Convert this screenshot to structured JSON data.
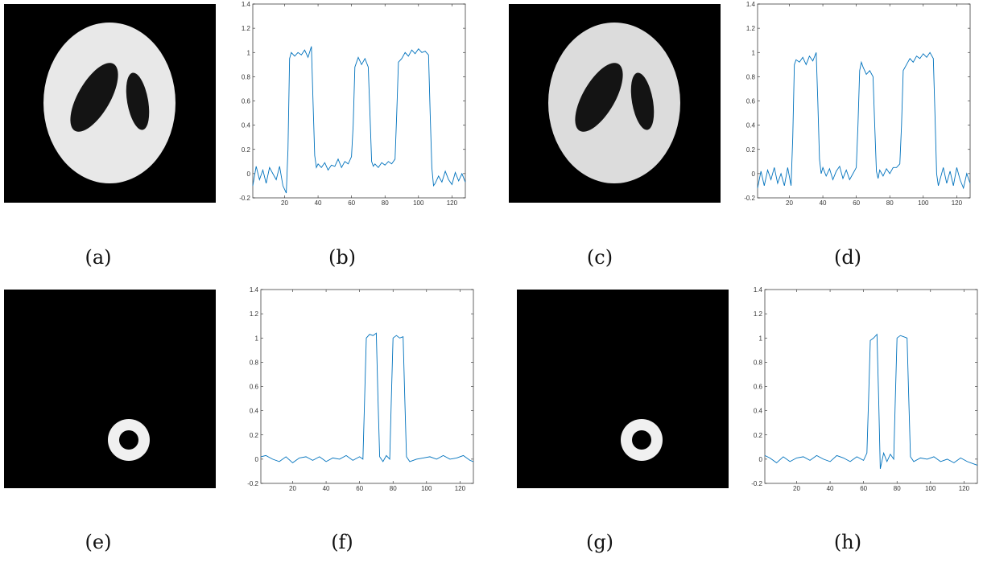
{
  "captions": {
    "a": "(a)",
    "b": "(b)",
    "c": "(c)",
    "d": "(d)",
    "e": "(e)",
    "f": "(f)",
    "g": "(g)",
    "h": "(h)"
  },
  "colors": {
    "line": "#0072BD",
    "axis": "#262626",
    "image_bg": "#000000",
    "phantom_fill": "#e8e8e8",
    "dark_fill": "#141414"
  },
  "images": {
    "a": {
      "subject": "ellipse phantom reconstruction",
      "shading": "smooth"
    },
    "c": {
      "subject": "ellipse phantom reconstruction",
      "shading": "blocky"
    },
    "e": {
      "subject": "ring phantom reconstruction"
    },
    "g": {
      "subject": "ring phantom reconstruction"
    }
  },
  "chart_data": [
    {
      "id": "b",
      "type": "line",
      "xlim": [
        1,
        128
      ],
      "ylim": [
        -0.2,
        1.4
      ],
      "xticks": [
        20,
        40,
        60,
        80,
        100,
        120
      ],
      "yticks": [
        -0.2,
        0,
        0.2,
        0.4,
        0.6,
        0.8,
        1,
        1.2,
        1.4
      ],
      "series": [
        {
          "x": [
            1,
            3,
            5,
            7,
            9,
            11,
            13,
            15,
            17,
            19,
            21,
            22,
            23,
            24,
            26,
            28,
            30,
            32,
            34,
            36,
            37,
            38,
            39,
            40,
            42,
            44,
            46,
            48,
            50,
            52,
            54,
            56,
            58,
            60,
            61,
            62,
            63,
            64,
            66,
            68,
            70,
            71,
            72,
            73,
            74,
            76,
            78,
            80,
            82,
            84,
            86,
            87,
            88,
            90,
            92,
            94,
            96,
            98,
            100,
            102,
            104,
            106,
            107,
            108,
            109,
            110,
            112,
            114,
            116,
            118,
            120,
            122,
            124,
            126,
            128
          ],
          "y": [
            -0.1,
            0.06,
            -0.05,
            0.03,
            -0.08,
            0.05,
            0.0,
            -0.05,
            0.06,
            -0.1,
            -0.16,
            0.2,
            0.95,
            1.0,
            0.97,
            1.0,
            0.98,
            1.02,
            0.96,
            1.05,
            0.6,
            0.15,
            0.05,
            0.08,
            0.05,
            0.09,
            0.03,
            0.07,
            0.06,
            0.12,
            0.05,
            0.1,
            0.08,
            0.14,
            0.4,
            0.88,
            0.92,
            0.96,
            0.9,
            0.95,
            0.88,
            0.5,
            0.1,
            0.06,
            0.08,
            0.05,
            0.09,
            0.07,
            0.1,
            0.08,
            0.12,
            0.5,
            0.92,
            0.95,
            1.0,
            0.97,
            1.02,
            0.99,
            1.03,
            1.0,
            1.01,
            0.98,
            0.5,
            0.05,
            -0.1,
            -0.08,
            -0.02,
            -0.07,
            0.02,
            -0.05,
            -0.09,
            0.01,
            -0.06,
            0.0,
            -0.07
          ]
        }
      ]
    },
    {
      "id": "d",
      "type": "line",
      "xlim": [
        1,
        128
      ],
      "ylim": [
        -0.2,
        1.4
      ],
      "xticks": [
        20,
        40,
        60,
        80,
        100,
        120
      ],
      "yticks": [
        -0.2,
        0,
        0.2,
        0.4,
        0.6,
        0.8,
        1,
        1.2,
        1.4
      ],
      "series": [
        {
          "x": [
            1,
            3,
            5,
            7,
            9,
            11,
            13,
            15,
            17,
            19,
            21,
            22,
            23,
            24,
            26,
            28,
            30,
            32,
            34,
            36,
            37,
            38,
            39,
            40,
            42,
            44,
            46,
            48,
            50,
            52,
            54,
            56,
            58,
            60,
            61,
            62,
            63,
            64,
            66,
            68,
            70,
            71,
            72,
            73,
            74,
            76,
            78,
            80,
            82,
            84,
            86,
            87,
            88,
            90,
            92,
            94,
            96,
            98,
            100,
            102,
            104,
            106,
            107,
            108,
            109,
            110,
            112,
            114,
            116,
            118,
            120,
            122,
            124,
            126,
            128
          ],
          "y": [
            -0.12,
            0.02,
            -0.1,
            0.03,
            -0.05,
            0.05,
            -0.08,
            0.0,
            -0.1,
            0.05,
            -0.1,
            0.3,
            0.9,
            0.94,
            0.92,
            0.96,
            0.9,
            0.97,
            0.93,
            1.0,
            0.6,
            0.12,
            0.0,
            0.05,
            -0.02,
            0.04,
            -0.05,
            0.02,
            0.06,
            -0.04,
            0.03,
            -0.05,
            0.0,
            0.05,
            0.4,
            0.85,
            0.92,
            0.88,
            0.82,
            0.85,
            0.8,
            0.4,
            0.02,
            -0.04,
            0.03,
            -0.02,
            0.04,
            0.0,
            0.05,
            0.05,
            0.08,
            0.4,
            0.85,
            0.9,
            0.95,
            0.92,
            0.97,
            0.95,
            0.99,
            0.96,
            1.0,
            0.95,
            0.5,
            0.0,
            -0.1,
            -0.05,
            0.05,
            -0.08,
            0.02,
            -0.1,
            0.05,
            -0.05,
            -0.12,
            0.0,
            -0.08
          ]
        }
      ]
    },
    {
      "id": "f",
      "type": "line",
      "xlim": [
        1,
        128
      ],
      "ylim": [
        -0.2,
        1.4
      ],
      "xticks": [
        20,
        40,
        60,
        80,
        100,
        120
      ],
      "yticks": [
        -0.2,
        0,
        0.2,
        0.4,
        0.6,
        0.8,
        1,
        1.2,
        1.4
      ],
      "series": [
        {
          "x": [
            1,
            4,
            8,
            12,
            16,
            20,
            24,
            28,
            32,
            36,
            40,
            44,
            48,
            52,
            56,
            60,
            62,
            63,
            64,
            66,
            68,
            70,
            71,
            72,
            74,
            76,
            78,
            79,
            80,
            82,
            84,
            86,
            87,
            88,
            90,
            94,
            98,
            102,
            106,
            110,
            114,
            118,
            122,
            126,
            128
          ],
          "y": [
            0.02,
            0.03,
            0.0,
            -0.02,
            0.02,
            -0.03,
            0.01,
            0.02,
            -0.01,
            0.02,
            -0.02,
            0.01,
            0.0,
            0.03,
            -0.01,
            0.02,
            0.0,
            0.5,
            1.0,
            1.03,
            1.02,
            1.04,
            0.5,
            0.02,
            -0.02,
            0.03,
            0.0,
            0.5,
            1.0,
            1.02,
            1.0,
            1.01,
            0.5,
            0.02,
            -0.02,
            0.0,
            0.01,
            0.02,
            0.0,
            0.03,
            0.0,
            0.01,
            0.03,
            -0.01,
            -0.02
          ]
        }
      ]
    },
    {
      "id": "h",
      "type": "line",
      "xlim": [
        1,
        128
      ],
      "ylim": [
        -0.2,
        1.4
      ],
      "xticks": [
        20,
        40,
        60,
        80,
        100,
        120
      ],
      "yticks": [
        -0.2,
        0,
        0.2,
        0.4,
        0.6,
        0.8,
        1,
        1.2,
        1.4
      ],
      "series": [
        {
          "x": [
            1,
            4,
            8,
            12,
            16,
            20,
            24,
            28,
            32,
            36,
            40,
            44,
            48,
            52,
            56,
            60,
            62,
            63,
            64,
            66,
            68,
            69,
            70,
            72,
            74,
            76,
            78,
            79,
            80,
            82,
            84,
            86,
            87,
            88,
            90,
            94,
            98,
            102,
            106,
            110,
            114,
            118,
            122,
            126,
            128
          ],
          "y": [
            0.03,
            0.01,
            -0.03,
            0.02,
            -0.02,
            0.01,
            0.02,
            -0.01,
            0.03,
            0.0,
            -0.02,
            0.03,
            0.01,
            -0.02,
            0.02,
            -0.01,
            0.05,
            0.5,
            0.98,
            1.0,
            1.03,
            0.5,
            -0.08,
            0.05,
            -0.02,
            0.04,
            0.0,
            0.5,
            1.0,
            1.02,
            1.01,
            1.0,
            0.5,
            0.02,
            -0.02,
            0.01,
            0.0,
            0.02,
            -0.02,
            0.0,
            -0.03,
            0.01,
            -0.02,
            -0.04,
            -0.05
          ]
        }
      ]
    }
  ]
}
